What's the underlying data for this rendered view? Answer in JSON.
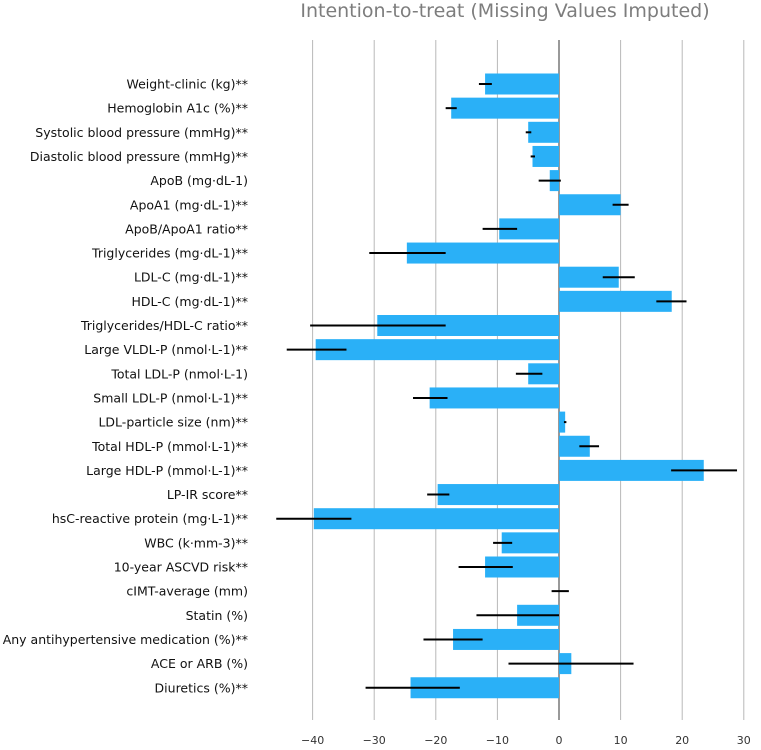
{
  "chart_data": {
    "type": "bar",
    "orientation": "horizontal",
    "title": "Intention-to-treat (Missing Values Imputed)",
    "xlabel": "",
    "ylabel": "",
    "xlim": [
      -44,
      30
    ],
    "xticks": [
      -40,
      -30,
      -20,
      -10,
      0,
      10,
      20,
      30
    ],
    "grid": "vertical",
    "bar_color": "#2ab0f7",
    "error_color": "#000000",
    "categories": [
      "Weight-clinic (kg)**",
      "Hemoglobin A1c (%)**",
      "Systolic blood pressure (mmHg)**",
      "Diastolic blood pressure (mmHg)**",
      "ApoB (mg·dL-1)",
      "ApoA1 (mg·dL-1)**",
      "ApoB/ApoA1 ratio**",
      "Triglycerides (mg·dL-1)**",
      "LDL-C (mg·dL-1)**",
      "HDL-C (mg·dL-1)**",
      "Triglycerides/HDL-C ratio**",
      "Large VLDL-P (nmol·L-1)**",
      "Total LDL-P (nmol·L-1)",
      "Small LDL-P (nmol·L-1)**",
      "LDL-particle size (nm)**",
      "Total HDL-P (mmol·L-1)**",
      "Large HDL-P (mmol·L-1)**",
      "LP-IR score**",
      "hsC-reactive protein (mg·L-1)**",
      "WBC (k·mm-3)**",
      "10-year ASCVD risk**",
      "cIMT-average (mm)",
      "Statin (%)",
      "Any antihypertensive medication (%)**",
      "ACE or ARB (%)",
      "Diuretics (%)**"
    ],
    "values": [
      -12,
      -17.5,
      -5,
      -4.3,
      -1.5,
      10,
      -9.7,
      -24.7,
      9.7,
      18.3,
      -29.5,
      -39.5,
      -5,
      -21,
      1,
      5,
      23.5,
      -19.7,
      -39.8,
      -9.3,
      -12,
      0,
      -6.8,
      -17.2,
      2,
      -24.1
    ],
    "error_low": [
      -13,
      -18.4,
      -5.4,
      -4.6,
      -3.3,
      8.7,
      -12.4,
      -30.8,
      7.1,
      15.8,
      -40.4,
      -44.2,
      -7,
      -23.7,
      0.8,
      3.3,
      18.2,
      -21.4,
      -45.9,
      -10.7,
      -16.3,
      -1.2,
      -13.4,
      -22,
      -8.2,
      -31.4
    ],
    "error_high": [
      -10.9,
      -16.6,
      -4.5,
      -3.9,
      0.3,
      11.3,
      -6.8,
      -18.4,
      12.3,
      20.7,
      -18.4,
      -34.5,
      -2.7,
      -18.1,
      1.2,
      6.5,
      28.9,
      -17.8,
      -33.7,
      -7.6,
      -7.5,
      1.6,
      0,
      -12.4,
      12.1,
      -16.1
    ]
  }
}
